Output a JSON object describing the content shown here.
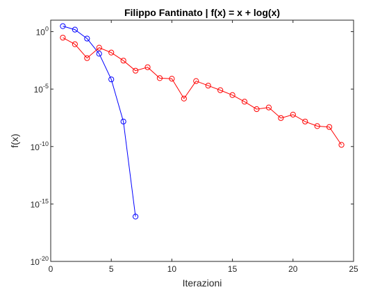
{
  "chart_data": {
    "type": "line",
    "title": "Filippo Fantinato | f(x) = x + log(x)",
    "xlabel": "Iterazioni",
    "ylabel": "f(x)",
    "xlim": [
      0,
      25
    ],
    "ylim": [
      1e-20,
      10
    ],
    "yscale": "log",
    "grid": false,
    "x_ticks": [
      "0",
      "5",
      "10",
      "15",
      "20",
      "25"
    ],
    "y_ticks": [
      {
        "base": "10",
        "exp": "0",
        "value": 1
      },
      {
        "base": "10",
        "exp": "-5",
        "value": 1e-05
      },
      {
        "base": "10",
        "exp": "-10",
        "value": 1e-10
      },
      {
        "base": "10",
        "exp": "-15",
        "value": 1e-15
      },
      {
        "base": "10",
        "exp": "-20",
        "value": 1e-20
      }
    ],
    "series": [
      {
        "color": "#0000ff",
        "marker": "circle",
        "x": [
          1,
          2,
          3,
          4,
          5,
          6,
          7
        ],
        "y": [
          3.0,
          1.5,
          0.25,
          0.012,
          7e-05,
          1.5e-08,
          8e-17
        ]
      },
      {
        "color": "#ff0000",
        "marker": "circle",
        "x": [
          1,
          2,
          3,
          4,
          5,
          6,
          7,
          8,
          9,
          10,
          11,
          12,
          13,
          14,
          15,
          16,
          17,
          18,
          19,
          20,
          21,
          22,
          23,
          24
        ],
        "y": [
          0.3,
          0.08,
          0.005,
          0.04,
          0.015,
          0.003,
          0.0004,
          0.0008,
          9e-05,
          8e-05,
          1.5e-06,
          5e-05,
          2e-05,
          8e-06,
          3e-06,
          8e-07,
          1.8e-07,
          2.5e-07,
          3e-08,
          6e-08,
          1.5e-08,
          6e-09,
          5e-09,
          1.4e-10
        ]
      }
    ]
  }
}
